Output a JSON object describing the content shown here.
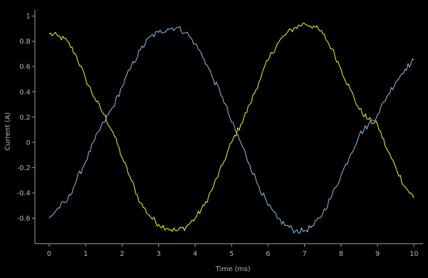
{
  "chart_data": {
    "type": "line",
    "xlabel": "Time (ms)",
    "ylabel": "Current (A)",
    "xlim": [
      -0.4,
      10.25
    ],
    "ylim": [
      -0.8,
      1.05
    ],
    "xticks": [
      0,
      1,
      2,
      3,
      4,
      5,
      6,
      7,
      8,
      9,
      10
    ],
    "yticks": [
      -0.6,
      -0.4,
      -0.2,
      0,
      0.2,
      0.4,
      0.6,
      0.8,
      1
    ],
    "ytick_labels": [
      "-0.6",
      "-0.4",
      "-0.2",
      "0",
      "0.2",
      "0.4",
      "0.6",
      "0.8",
      "1"
    ],
    "xtick_labels": [
      "0",
      "1",
      "2",
      "3",
      "4",
      "5",
      "6",
      "7",
      "8",
      "9",
      "10"
    ],
    "grid": false,
    "legend": "none",
    "background": "#000000",
    "series": [
      {
        "color": "#ffff33",
        "x": [
          0,
          0.25,
          0.5,
          0.75,
          1,
          1.25,
          1.5,
          1.75,
          2,
          2.25,
          2.5,
          2.75,
          3,
          3.25,
          3.5,
          3.75,
          4,
          4.25,
          4.5,
          4.75,
          5,
          5.25,
          5.5,
          5.75,
          6,
          6.25,
          6.5,
          6.75,
          7,
          7.25,
          7.5,
          7.75,
          8,
          8.25,
          8.5,
          8.75,
          9,
          9.25,
          9.5,
          9.75,
          10
        ],
        "y": [
          0.86,
          0.84,
          0.8,
          0.68,
          0.5,
          0.35,
          0.22,
          0.08,
          -0.12,
          -0.3,
          -0.48,
          -0.58,
          -0.65,
          -0.68,
          -0.7,
          -0.67,
          -0.6,
          -0.5,
          -0.35,
          -0.18,
          0.0,
          0.14,
          0.3,
          0.48,
          0.65,
          0.78,
          0.86,
          0.91,
          0.94,
          0.92,
          0.86,
          0.74,
          0.58,
          0.42,
          0.26,
          0.18,
          0.14,
          -0.05,
          -0.2,
          -0.35,
          -0.44
        ]
      },
      {
        "color": "#8fc6f2",
        "x": [
          0,
          0.25,
          0.5,
          0.75,
          1,
          1.25,
          1.5,
          1.75,
          2,
          2.25,
          2.5,
          2.75,
          3,
          3.25,
          3.5,
          3.75,
          4,
          4.25,
          4.5,
          4.75,
          5,
          5.25,
          5.5,
          5.75,
          6,
          6.25,
          6.5,
          6.75,
          7,
          7.25,
          7.5,
          7.75,
          8,
          8.25,
          8.5,
          8.75,
          9,
          9.25,
          9.5,
          9.75,
          10
        ],
        "y": [
          -0.6,
          -0.52,
          -0.46,
          -0.3,
          -0.15,
          0.02,
          0.16,
          0.28,
          0.44,
          0.6,
          0.73,
          0.83,
          0.87,
          0.9,
          0.91,
          0.87,
          0.78,
          0.66,
          0.5,
          0.36,
          0.16,
          0.0,
          -0.18,
          -0.35,
          -0.5,
          -0.6,
          -0.66,
          -0.7,
          -0.7,
          -0.66,
          -0.56,
          -0.42,
          -0.26,
          -0.1,
          0.06,
          0.14,
          0.22,
          0.36,
          0.48,
          0.58,
          0.65
        ]
      }
    ]
  }
}
